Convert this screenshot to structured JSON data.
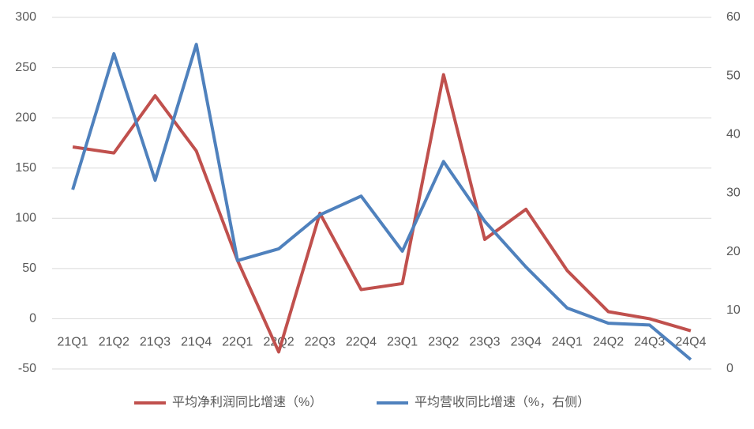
{
  "chart_data": {
    "type": "line",
    "categories": [
      "21Q1",
      "21Q2",
      "21Q3",
      "21Q4",
      "22Q1",
      "22Q2",
      "22Q3",
      "22Q4",
      "23Q1",
      "23Q2",
      "23Q3",
      "23Q4",
      "24Q1",
      "24Q2",
      "24Q3",
      "24Q4"
    ],
    "series": [
      {
        "name": "平均净利润同比增速（%）",
        "color": "#c0504d",
        "values": [
          171,
          165,
          222,
          167,
          58,
          -33,
          105,
          29,
          35,
          243,
          79,
          109,
          48,
          7,
          0,
          -12
        ]
      },
      {
        "name": "平均营收同比增速（%，右侧）",
        "color": "#4f81bd",
        "axis": "y2",
        "values": [
          30.6,
          53.8,
          32.2,
          55.4,
          18.5,
          20.5,
          26.3,
          29.5,
          20.1,
          35.4,
          25.2,
          17.4,
          10.4,
          7.8,
          7.5,
          1.6
        ]
      }
    ],
    "ylim": [
      -50,
      300
    ],
    "yticks": [
      -50,
      0,
      50,
      100,
      150,
      200,
      250,
      300
    ],
    "y2lim": [
      0,
      60
    ],
    "y2ticks": [
      0,
      10,
      20,
      30,
      40,
      50,
      60
    ],
    "grid": true,
    "legend": "bottom"
  }
}
